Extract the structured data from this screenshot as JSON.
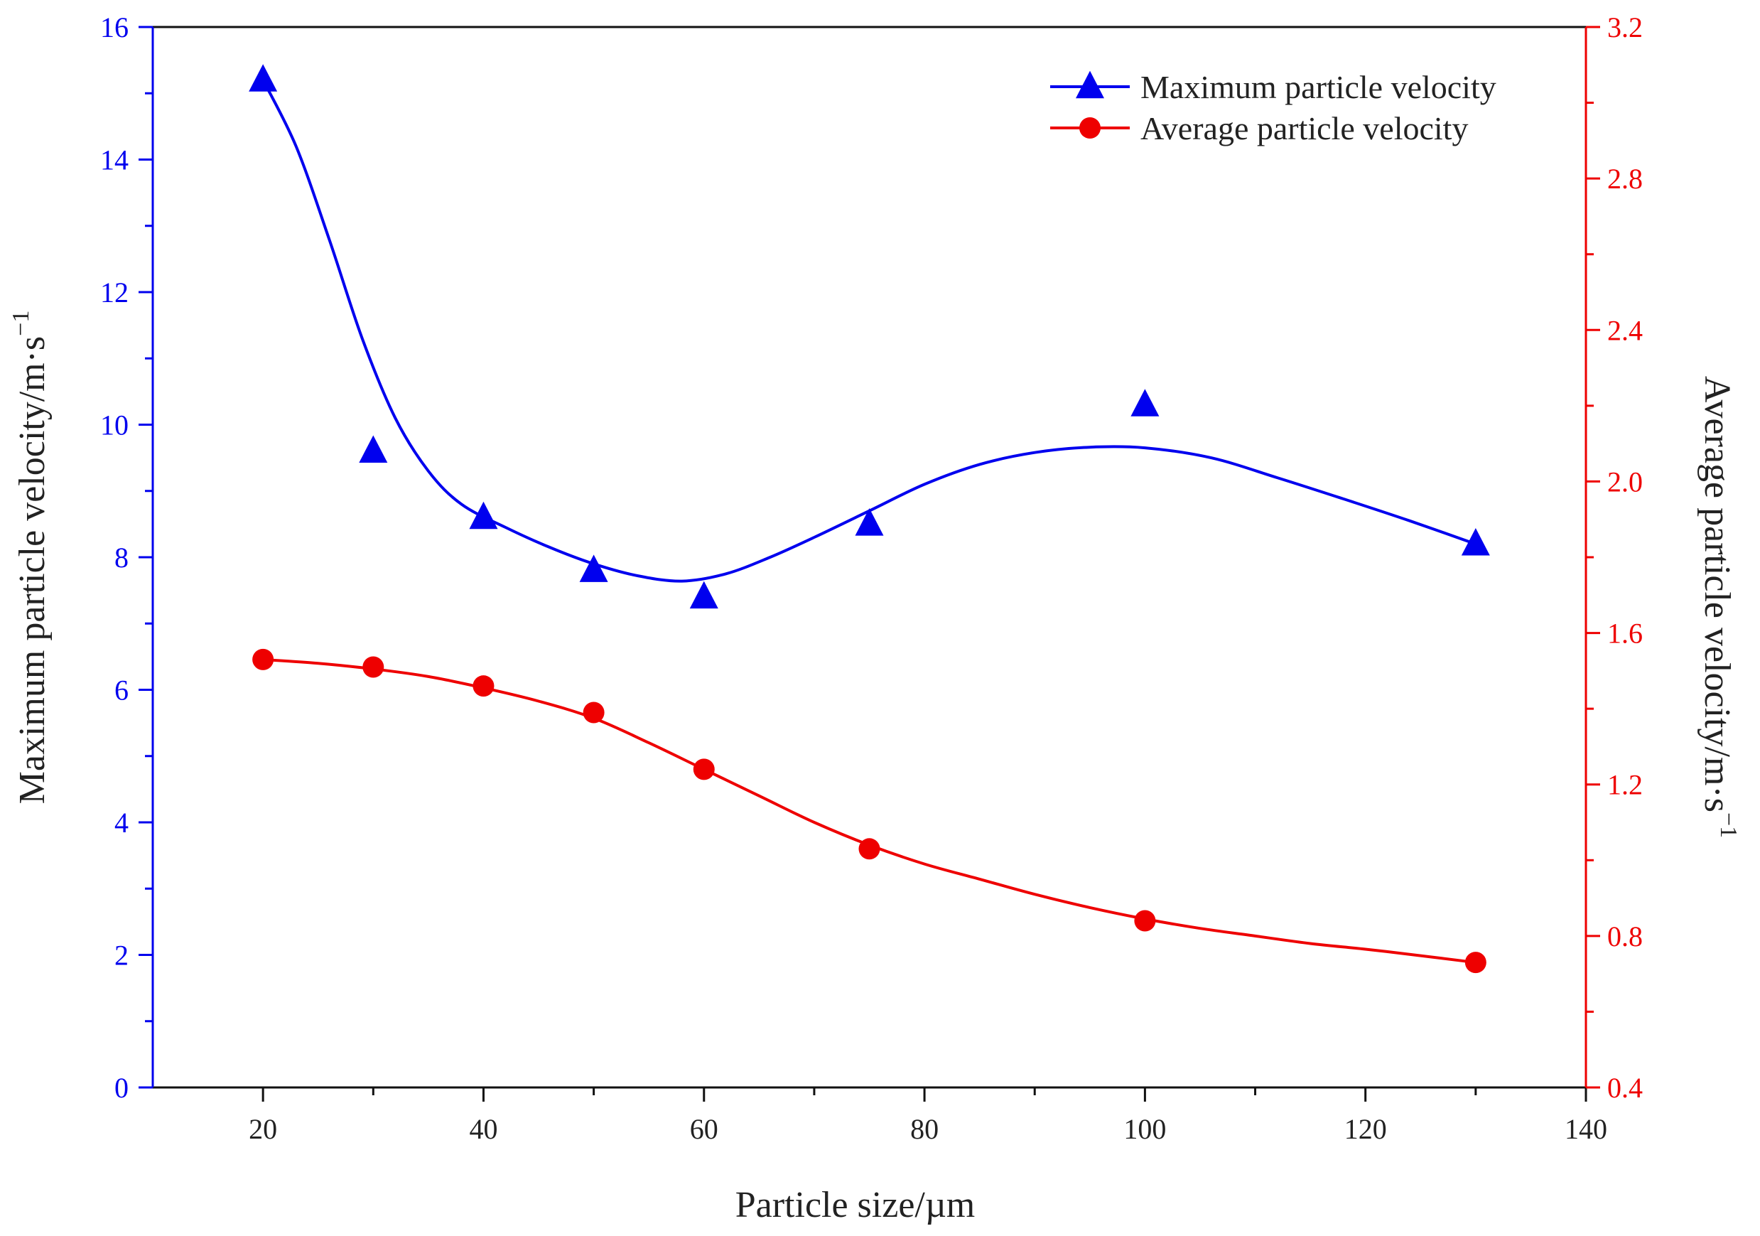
{
  "chart_data": {
    "type": "line",
    "title": "",
    "xlabel": "Particle size/µm",
    "ylabel_left": "Maximum particle velocity/m·s",
    "ylabel_left_sup": "−1",
    "ylabel_right": "Average particle velocity/m·s",
    "ylabel_right_sup": "−1",
    "xlim": [
      10,
      140
    ],
    "ylim_left": [
      0,
      16
    ],
    "ylim_right": [
      0.4,
      3.2
    ],
    "x_ticks": [
      20,
      40,
      60,
      80,
      100,
      120,
      140
    ],
    "x_tick_labels": [
      "20",
      "40",
      "60",
      "80",
      "100",
      "120",
      "140"
    ],
    "y_left_ticks": [
      0,
      2,
      4,
      6,
      8,
      10,
      12,
      14,
      16
    ],
    "y_left_tick_labels": [
      "0",
      "2",
      "4",
      "6",
      "8",
      "10",
      "12",
      "14",
      "16"
    ],
    "y_right_ticks": [
      0.4,
      0.8,
      1.2,
      1.6,
      2.0,
      2.4,
      2.8,
      3.2
    ],
    "y_right_tick_labels": [
      "0.4",
      "0.8",
      "1.2",
      "1.6",
      "2.0",
      "2.4",
      "2.8",
      "3.2"
    ],
    "grid": false,
    "legend_position": "top-right",
    "series": [
      {
        "name": "Maximum particle velocity",
        "axis": "left",
        "marker": "triangle",
        "color": "#0000ee",
        "x": [
          20,
          30,
          40,
          50,
          60,
          75,
          100,
          130
        ],
        "values": [
          15.2,
          9.6,
          8.6,
          7.8,
          7.4,
          8.5,
          10.3,
          8.2
        ],
        "fit_curve_x": [
          20,
          23,
          26,
          29,
          32,
          35,
          38,
          42,
          46,
          50,
          54,
          58,
          62,
          66,
          70,
          75,
          80,
          85,
          90,
          95,
          100,
          106,
          112,
          118,
          124,
          130
        ],
        "fit_curve_y": [
          15.2,
          14.2,
          12.8,
          11.3,
          10.1,
          9.3,
          8.8,
          8.45,
          8.15,
          7.9,
          7.72,
          7.64,
          7.75,
          8.0,
          8.3,
          8.7,
          9.1,
          9.4,
          9.58,
          9.66,
          9.65,
          9.5,
          9.2,
          8.88,
          8.55,
          8.2
        ]
      },
      {
        "name": "Average particle velocity",
        "axis": "right",
        "marker": "circle",
        "color": "#ee0000",
        "x": [
          20,
          30,
          40,
          50,
          60,
          75,
          100,
          130
        ],
        "values": [
          1.53,
          1.51,
          1.46,
          1.39,
          1.24,
          1.03,
          0.84,
          0.73
        ],
        "fit_curve_x": [
          20,
          25,
          30,
          35,
          40,
          45,
          50,
          55,
          60,
          65,
          70,
          75,
          80,
          85,
          90,
          95,
          100,
          105,
          110,
          115,
          120,
          125,
          130
        ],
        "fit_curve_y": [
          1.53,
          1.52,
          1.505,
          1.485,
          1.455,
          1.42,
          1.375,
          1.31,
          1.24,
          1.17,
          1.1,
          1.04,
          0.99,
          0.95,
          0.91,
          0.875,
          0.845,
          0.82,
          0.8,
          0.78,
          0.765,
          0.748,
          0.73
        ]
      }
    ]
  }
}
